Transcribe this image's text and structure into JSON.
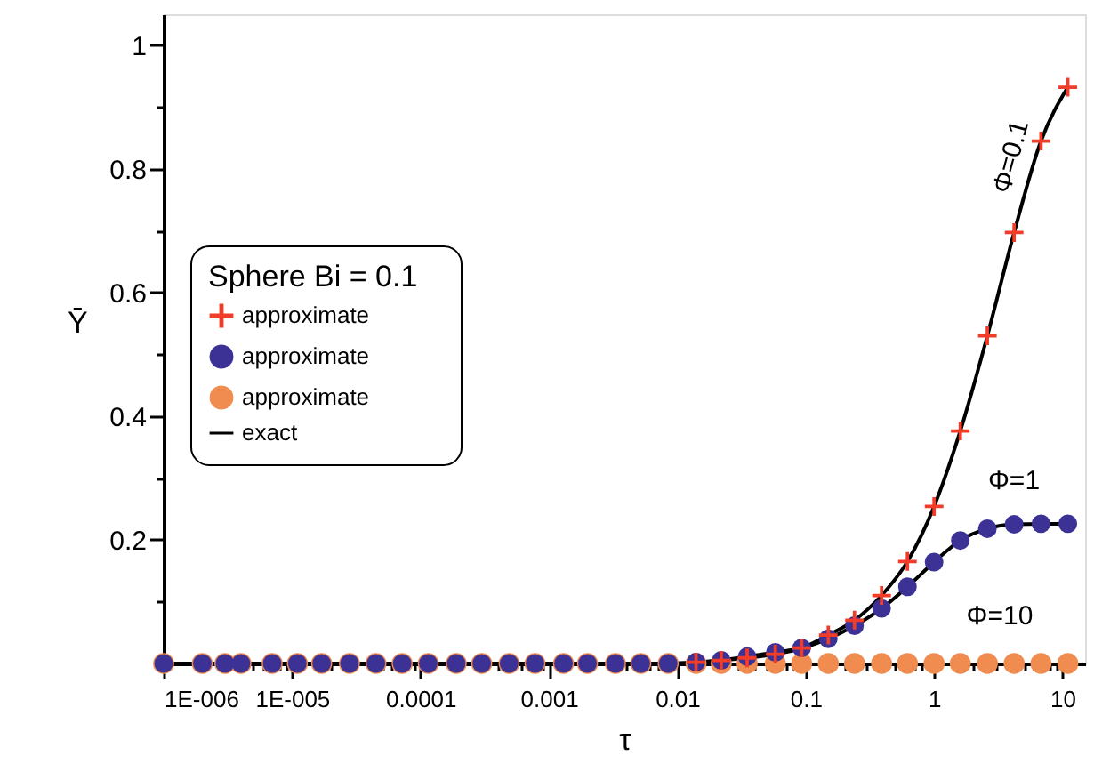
{
  "chart_data": {
    "type": "scatter",
    "xlabel": "τ",
    "ylabel": "Ȳ",
    "legend_title": "Sphere    Bi = 0.1",
    "x": [
      1e-06,
      2e-06,
      3e-06,
      4e-06,
      7e-06,
      1.1e-05,
      1.7e-05,
      2.8e-05,
      4.5e-05,
      7.2e-05,
      0.000115,
      0.00019,
      0.0003,
      0.00049,
      0.00078,
      0.0013,
      0.002,
      0.0033,
      0.0052,
      0.0085,
      0.014,
      0.022,
      0.035,
      0.058,
      0.093,
      0.15,
      0.24,
      0.39,
      0.62,
      1.0,
      1.6,
      2.6,
      4.2,
      6.8,
      11
    ],
    "series": [
      {
        "name": "approximate",
        "marker": "cross",
        "color": "#f03c28",
        "values": [
          null,
          null,
          null,
          null,
          null,
          null,
          null,
          null,
          null,
          null,
          null,
          null,
          null,
          null,
          null,
          null,
          null,
          null,
          null,
          null,
          0.002,
          0.005,
          0.009,
          0.015,
          0.025,
          0.046,
          0.07,
          0.11,
          0.165,
          0.254,
          0.376,
          0.53,
          0.697,
          0.845,
          0.932
        ]
      },
      {
        "name": "approximate",
        "marker": "circle",
        "color": "#3c3296",
        "values": [
          0,
          0,
          0,
          0,
          0,
          0,
          0,
          0,
          0,
          0,
          0,
          0,
          0,
          0,
          0,
          0,
          0,
          0,
          0,
          0,
          0.002,
          0.005,
          0.011,
          0.018,
          0.025,
          0.04,
          0.061,
          0.089,
          0.124,
          0.164,
          0.199,
          0.218,
          0.225,
          0.226,
          0.226
        ]
      },
      {
        "name": "approximate",
        "marker": "circle",
        "color": "#f08c50",
        "values": [
          0,
          0,
          0,
          0,
          0,
          0,
          0,
          0,
          0,
          0,
          0,
          0,
          0,
          0,
          0,
          0,
          0,
          0,
          0,
          0,
          0,
          0,
          0,
          0,
          0,
          0,
          0,
          0,
          0,
          0,
          0,
          0,
          0,
          0,
          0
        ]
      },
      {
        "name": "exact",
        "type": "line",
        "color": "#000000",
        "values": [
          0,
          0,
          0,
          0,
          0,
          0,
          0,
          0,
          0,
          0,
          0,
          0,
          0,
          0,
          0,
          0,
          0,
          0,
          0,
          0,
          0.002,
          0.005,
          0.009,
          0.015,
          0.025,
          0.046,
          0.07,
          0.11,
          0.165,
          0.254,
          0.376,
          0.53,
          0.697,
          0.845,
          0.932
        ]
      },
      {
        "type": "line",
        "color": "#000000",
        "values": [
          0,
          0,
          0,
          0,
          0,
          0,
          0,
          0,
          0,
          0,
          0,
          0,
          0,
          0,
          0,
          0,
          0,
          0,
          0,
          0,
          0.002,
          0.005,
          0.011,
          0.018,
          0.025,
          0.04,
          0.061,
          0.089,
          0.124,
          0.164,
          0.199,
          0.218,
          0.225,
          0.226,
          0.226
        ]
      }
    ],
    "log": "x",
    "xlim": [
      1e-06,
      15
    ],
    "ylim": [
      0,
      1.05
    ],
    "xticks": [
      {
        "value": 1e-06,
        "label": "1E-006"
      },
      {
        "value": 2e-06,
        "label": null
      },
      {
        "value": 3e-06,
        "label": null
      },
      {
        "value": 4e-06,
        "label": null
      },
      {
        "value": 5e-06,
        "label": null
      },
      {
        "value": 6e-06,
        "label": null
      },
      {
        "value": 7e-06,
        "label": null
      },
      {
        "value": 8e-06,
        "label": null
      },
      {
        "value": 9e-06,
        "label": null
      },
      {
        "value": 1e-05,
        "label": "1E-005"
      },
      {
        "value": 2e-05,
        "label": null
      },
      {
        "value": 3e-05,
        "label": null
      },
      {
        "value": 4e-05,
        "label": null
      },
      {
        "value": 5e-05,
        "label": null
      },
      {
        "value": 6e-05,
        "label": null
      },
      {
        "value": 7e-05,
        "label": null
      },
      {
        "value": 8e-05,
        "label": null
      },
      {
        "value": 9e-05,
        "label": null
      },
      0.0001,
      {
        "value": 0.0002,
        "label": null
      },
      {
        "value": 0.0003,
        "label": null
      },
      {
        "value": 0.0004,
        "label": null
      },
      {
        "value": 0.0005,
        "label": null
      },
      {
        "value": 0.0006,
        "label": null
      },
      {
        "value": 0.0007,
        "label": null
      },
      {
        "value": 0.0008,
        "label": null
      },
      {
        "value": 0.0009,
        "label": null
      },
      0.001,
      {
        "value": 0.002,
        "label": null
      },
      {
        "value": 0.003,
        "label": null
      },
      {
        "value": 0.004,
        "label": null
      },
      {
        "value": 0.005,
        "label": null
      },
      {
        "value": 0.006,
        "label": null
      },
      {
        "value": 0.007,
        "label": null
      },
      {
        "value": 0.008,
        "label": null
      },
      {
        "value": 0.009,
        "label": null
      },
      0.01,
      {
        "value": 0.02,
        "label": null
      },
      {
        "value": 0.03,
        "label": null
      },
      {
        "value": 0.04,
        "label": null
      },
      {
        "value": 0.05,
        "label": null
      },
      {
        "value": 0.06,
        "label": null
      },
      {
        "value": 0.07,
        "label": null
      },
      {
        "value": 0.08,
        "label": null
      },
      {
        "value": 0.09,
        "label": null
      },
      0.1,
      {
        "value": 0.2,
        "label": null
      },
      {
        "value": 0.3,
        "label": null
      },
      {
        "value": 0.4,
        "label": null
      },
      {
        "value": 0.5,
        "label": null
      },
      {
        "value": 0.6,
        "label": null
      },
      {
        "value": 0.7,
        "label": null
      },
      {
        "value": 0.8,
        "label": null
      },
      {
        "value": 0.9,
        "label": null
      },
      1,
      {
        "value": 2,
        "label": null
      },
      {
        "value": 3,
        "label": null
      },
      {
        "value": 4,
        "label": null
      },
      {
        "value": 5,
        "label": null
      },
      {
        "value": 6,
        "label": null
      },
      {
        "value": 7,
        "label": null
      },
      {
        "value": 8,
        "label": null
      },
      {
        "value": 9,
        "label": null
      },
      10
    ],
    "yticks": [
      {
        "value": 0.1,
        "label": null
      },
      0.2,
      {
        "value": 0.3,
        "label": null
      },
      0.4,
      {
        "value": 0.5,
        "label": null
      },
      0.6,
      {
        "value": 0.7,
        "label": null
      },
      0.8,
      {
        "value": 0.9,
        "label": null
      },
      1
    ],
    "annotations": [
      "Φ=0.1",
      "Φ=1",
      "Φ=10"
    ],
    "grid": false,
    "legend": "left"
  }
}
